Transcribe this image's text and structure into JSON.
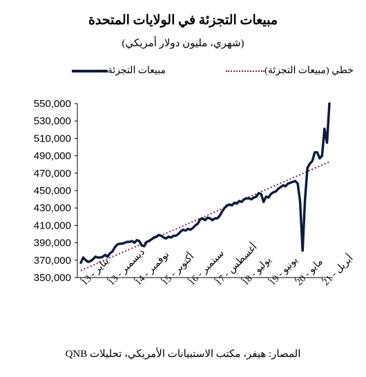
{
  "chart_data": {
    "type": "line",
    "title": "مبيعات التجزئة في الولايات المتحدة",
    "subtitle": "(شهري، مليون دولار أمريكي)",
    "source": "المصار: هيفر، مكتب الاستبيانات الأمريكي، تحليلات QNB",
    "xlabel": "",
    "ylabel": "",
    "ylim": [
      350000,
      550000
    ],
    "yticks": [
      "350,000",
      "370,000",
      "390,000",
      "410,000",
      "430,000",
      "450,000",
      "470,000",
      "490,000",
      "510,000",
      "530,000",
      "550,000"
    ],
    "ytick_values": [
      350000,
      370000,
      390000,
      410000,
      430000,
      450000,
      470000,
      490000,
      510000,
      530000,
      550000
    ],
    "xtick_labels": [
      "يناير - 13",
      "ديسمبر - 13",
      "نوفمبر - 14",
      "أكتوبر - 15",
      "سبتمبر - 16",
      "أغسطس - 17",
      "يوليو - 18",
      "يونيو - 19",
      "مايو - 20",
      "أبريل - 21"
    ],
    "xtick_months": [
      0,
      11,
      22,
      33,
      44,
      55,
      66,
      77,
      88,
      99
    ],
    "grid": false,
    "legend_position": "top",
    "series": [
      {
        "name": "مبيعات التجزئة",
        "style": "solid",
        "color": "#0d1b3e",
        "values": [
          367000,
          373000,
          370000,
          368000,
          369000,
          371000,
          374000,
          373000,
          373000,
          374000,
          376000,
          374000,
          378000,
          380000,
          385000,
          388000,
          389000,
          389000,
          390000,
          391000,
          391000,
          392000,
          390000,
          393000,
          392000,
          387000,
          386000,
          391000,
          392000,
          394000,
          396000,
          397000,
          399000,
          398000,
          396000,
          395000,
          397000,
          396000,
          398000,
          398000,
          400000,
          403000,
          405000,
          404000,
          406000,
          405000,
          407000,
          410000,
          412000,
          417000,
          418000,
          416000,
          419000,
          418000,
          416000,
          418000,
          418000,
          421000,
          426000,
          430000,
          433000,
          434000,
          433000,
          436000,
          435000,
          438000,
          437000,
          440000,
          441000,
          441000,
          440000,
          442000,
          443000,
          447000,
          446000,
          437000,
          443000,
          442000,
          446000,
          448000,
          449000,
          452000,
          454000,
          456000,
          455000,
          458000,
          459000,
          460000,
          461000,
          458000,
          437000,
          381000,
          440000,
          476000,
          481000,
          484000,
          494000,
          494000,
          487000,
          490000,
          521000,
          505000,
          550000
        ]
      },
      {
        "name": "خطي (مبيعات التجزئة)",
        "style": "dotted",
        "color": "#8b1a4a",
        "values": [
          358000,
          483000
        ]
      }
    ]
  }
}
